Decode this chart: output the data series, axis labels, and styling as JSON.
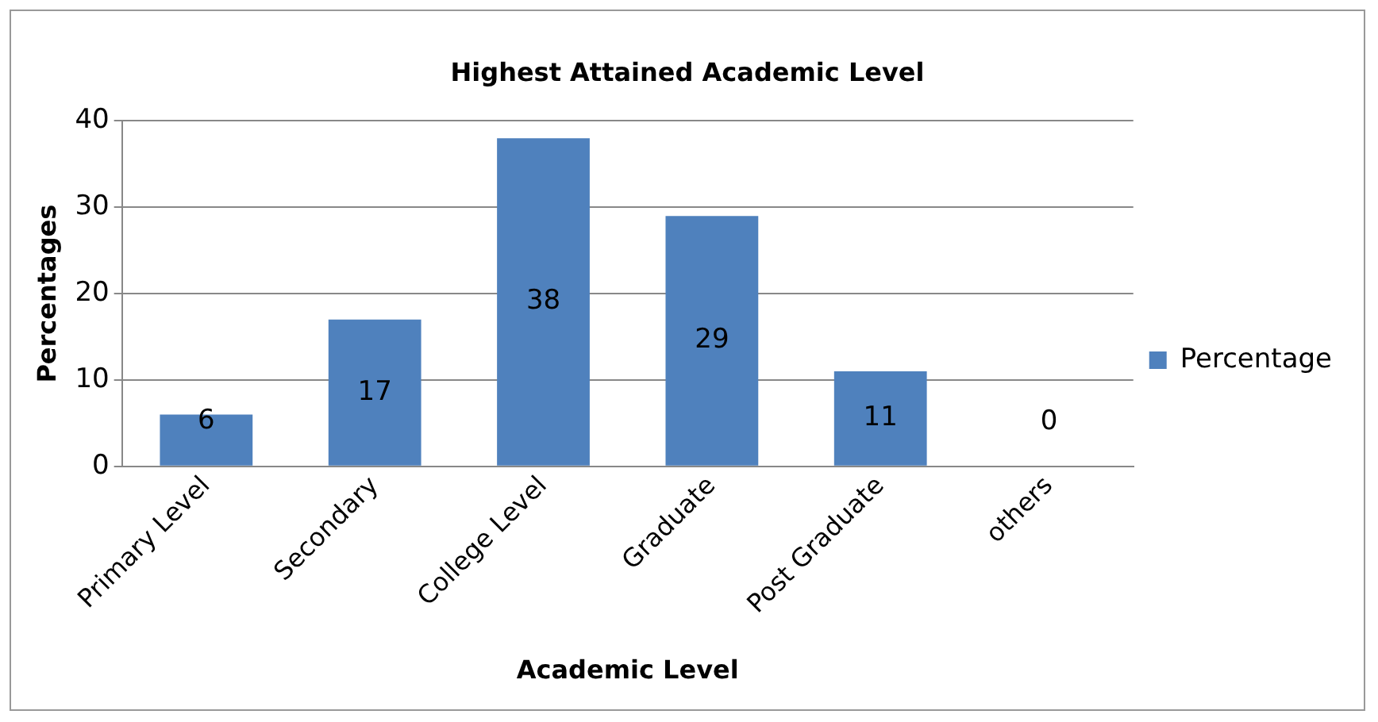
{
  "chart_data": {
    "type": "bar",
    "title": "Highest Attained Academic Level",
    "xlabel": "Academic Level",
    "ylabel": "Percentages",
    "categories": [
      "Primary Level",
      "Secondary",
      "College Level",
      "Graduate",
      "Post Graduate",
      "others"
    ],
    "series": [
      {
        "name": "Percentage",
        "color": "#4f81bd",
        "values": [
          6,
          17,
          38,
          29,
          11,
          0
        ]
      }
    ],
    "ylim": [
      0,
      40
    ],
    "yticks": [
      0,
      10,
      20,
      30,
      40
    ],
    "grid": "y",
    "legend": "right",
    "data_labels": true
  }
}
